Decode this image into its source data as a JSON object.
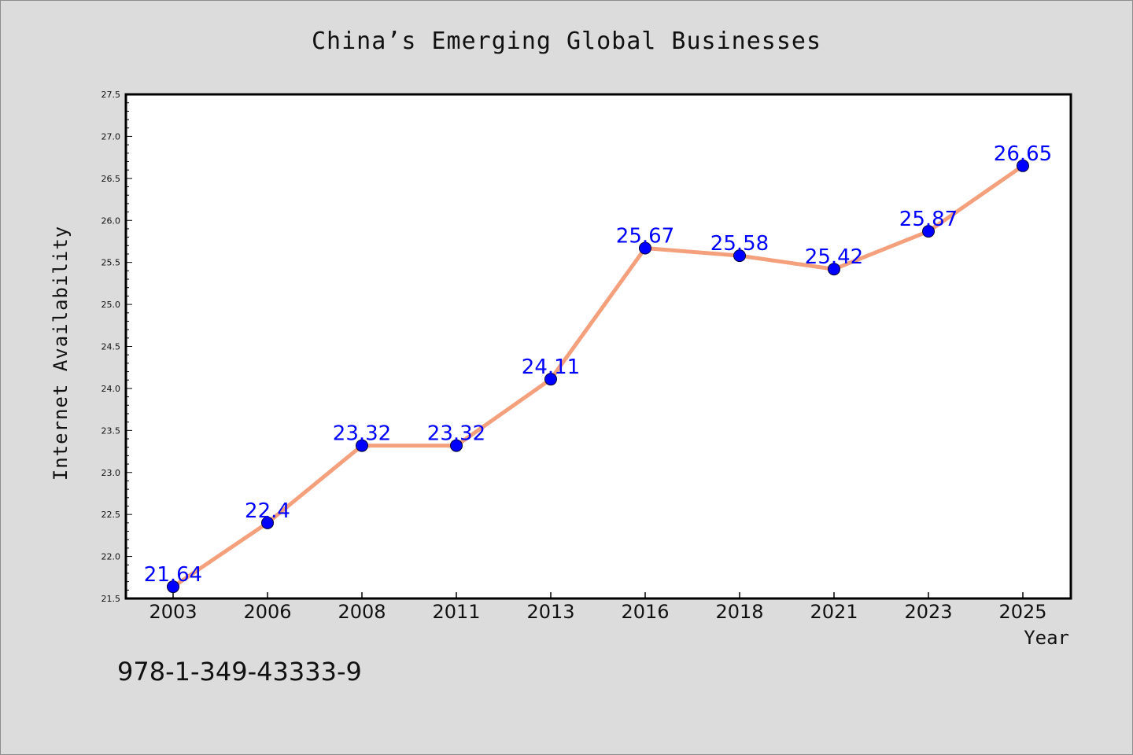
{
  "figure": {
    "isbn": "978-1-349-43333-9"
  },
  "chart_data": {
    "type": "line",
    "title": "China’s Emerging Global Businesses",
    "xlabel": "Year",
    "ylabel": "Internet Availability",
    "categories": [
      "2003",
      "2006",
      "2008",
      "2011",
      "2013",
      "2016",
      "2018",
      "2021",
      "2023",
      "2025"
    ],
    "series": [
      {
        "values": [
          21.64,
          22.4,
          23.32,
          23.32,
          24.11,
          25.67,
          25.58,
          25.42,
          25.87,
          26.65
        ],
        "labels": [
          "21.64",
          "22.4",
          "23.32",
          "23.32",
          "24.11",
          "25.67",
          "25.58",
          "25.42",
          "25.87",
          "26.65"
        ],
        "line_color": "#f4a07c",
        "marker_color": "#0000ff",
        "label_color": "#0000ff"
      }
    ],
    "ylim": [
      21.5,
      27.5
    ],
    "yticks": [
      "21.5",
      "22.0",
      "22.5",
      "23.0",
      "23.5",
      "24.0",
      "24.5",
      "25.0",
      "25.5",
      "26.0",
      "26.5",
      "27.0",
      "27.5"
    ],
    "grid": false,
    "legend": "none",
    "plot_background": "#ffffff",
    "figure_background": "#dcdcdc"
  }
}
